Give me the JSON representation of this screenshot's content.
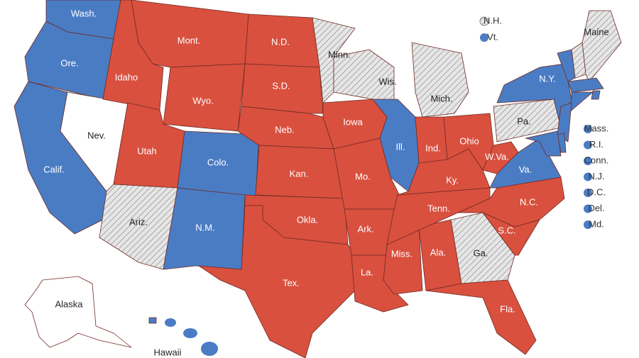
{
  "map": {
    "states": [
      {
        "label": "Wash.",
        "fill": "#4a7cc4"
      },
      {
        "label": "Ore.",
        "fill": "#4a7cc4"
      },
      {
        "label": "Calif.",
        "fill": "#4a7cc4"
      },
      {
        "label": "Nev.",
        "fill": "#ffffff"
      },
      {
        "label": "Idaho",
        "fill": "#d9503f"
      },
      {
        "label": "Mont.",
        "fill": "#d9503f"
      },
      {
        "label": "Wyo.",
        "fill": "#d9503f"
      },
      {
        "label": "Utah",
        "fill": "#d9503f"
      },
      {
        "label": "Colo.",
        "fill": "#4a7cc4"
      },
      {
        "label": "Ariz.",
        "fill": "hatched"
      },
      {
        "label": "N.M.",
        "fill": "#4a7cc4"
      },
      {
        "label": "N.D.",
        "fill": "#d9503f"
      },
      {
        "label": "S.D.",
        "fill": "#d9503f"
      },
      {
        "label": "Neb.",
        "fill": "#d9503f"
      },
      {
        "label": "Kan.",
        "fill": "#d9503f"
      },
      {
        "label": "Okla.",
        "fill": "#d9503f"
      },
      {
        "label": "Tex.",
        "fill": "#d9503f"
      },
      {
        "label": "Minn.",
        "fill": "hatched"
      },
      {
        "label": "Iowa",
        "fill": "#d9503f"
      },
      {
        "label": "Wis.",
        "fill": "hatched"
      },
      {
        "label": "Mich.",
        "fill": "hatched"
      },
      {
        "label": "Ill.",
        "fill": "#4a7cc4"
      },
      {
        "label": "Mo.",
        "fill": "#d9503f"
      },
      {
        "label": "Ark.",
        "fill": "#d9503f"
      },
      {
        "label": "La.",
        "fill": "#d9503f"
      },
      {
        "label": "Miss.",
        "fill": "#d9503f"
      },
      {
        "label": "Ala.",
        "fill": "#d9503f"
      },
      {
        "label": "Ga.",
        "fill": "hatched"
      },
      {
        "label": "Fla.",
        "fill": "#d9503f"
      },
      {
        "label": "Tenn.",
        "fill": "#d9503f"
      },
      {
        "label": "Ky.",
        "fill": "#d9503f"
      },
      {
        "label": "Ind.",
        "fill": "#d9503f"
      },
      {
        "label": "Ohio",
        "fill": "#d9503f"
      },
      {
        "label": "W.Va.",
        "fill": "#d9503f"
      },
      {
        "label": "Va.",
        "fill": "#4a7cc4"
      },
      {
        "label": "N.C.",
        "fill": "#d9503f"
      },
      {
        "label": "S.C.",
        "fill": "#d9503f"
      },
      {
        "label": "Pa.",
        "fill": "hatched"
      },
      {
        "label": "N.Y.",
        "fill": "#4a7cc4"
      },
      {
        "label": "Maine",
        "fill": "hatched"
      },
      {
        "label": "Alaska",
        "fill": "#ffffff"
      },
      {
        "label": "Hawaii",
        "fill": "#4a7cc4"
      }
    ],
    "legend": [
      {
        "label": "N.H.",
        "fill": "hatched"
      },
      {
        "label": "Vt.",
        "fill": "#4a7cc4"
      },
      {
        "label": "Mass.",
        "fill": "#4a7cc4"
      },
      {
        "label": "R.I.",
        "fill": "#4a7cc4"
      },
      {
        "label": "Conn.",
        "fill": "#4a7cc4"
      },
      {
        "label": "N.J.",
        "fill": "#4a7cc4"
      },
      {
        "label": "D.C.",
        "fill": "#4a7cc4"
      },
      {
        "label": "Del.",
        "fill": "#4a7cc4"
      },
      {
        "label": "Md.",
        "fill": "#4a7cc4"
      }
    ]
  }
}
